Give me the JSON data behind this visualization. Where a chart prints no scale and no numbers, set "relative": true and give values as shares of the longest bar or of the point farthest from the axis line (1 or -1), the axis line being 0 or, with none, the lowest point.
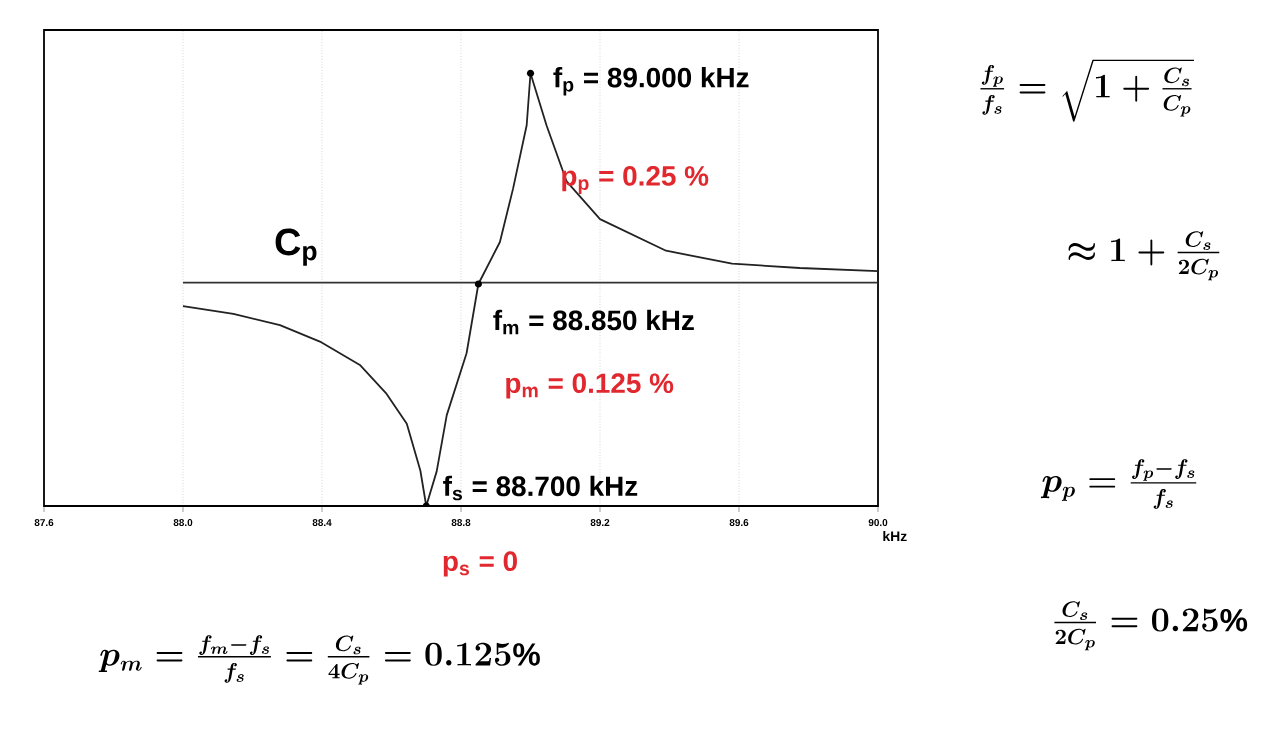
{
  "chart_data": {
    "type": "line",
    "relative": true,
    "xlabel": "kHz",
    "xlim": [
      87.6,
      90.0
    ],
    "xticks": [
      87.6,
      {
        "value": 88,
        "label": "88.0"
      },
      88.4,
      88.8,
      89.2,
      89.6,
      {
        "value": 90,
        "label": "90.0"
      }
    ],
    "grid": "x",
    "series": [
      {
        "color": "#222222",
        "x": [
          88.0,
          88.145,
          88.279,
          88.394,
          88.509,
          88.584,
          88.644,
          88.683,
          88.7,
          88.73,
          88.759,
          88.816,
          88.85,
          88.912,
          88.95,
          88.989,
          89.0,
          89.046,
          89.104,
          89.2,
          89.39,
          89.58,
          89.775,
          90.0
        ],
        "values": [
          0.462,
          0.444,
          0.418,
          0.38,
          0.326,
          0.261,
          0.19,
          0.082,
          0,
          0.08,
          0.21,
          0.353,
          0.513,
          0.61,
          0.734,
          0.88,
          1,
          0.88,
          0.75,
          0.663,
          0.59,
          0.56,
          0.55,
          0.543
        ]
      },
      {
        "name": "C$_{p}$",
        "color": "#333333",
        "x": [
          88.0,
          90.0
        ],
        "values": [
          0.516,
          0.516
        ]
      }
    ],
    "annotations": [
      {
        "text": "f$_{p}$ = 89.000 kHz",
        "x": 89.0,
        "y": 1
      },
      "p$_{p}$ = 0.25 %",
      {
        "text": "f$_{m}$ = 88.850 kHz",
        "x": 88.85,
        "y": 0.513
      },
      "p$_{m}$ = 0.125 %",
      {
        "text": "f$_{s}$ = 88.700 kHz",
        "x": 88.7,
        "y": 0
      },
      "p$_{s}$ = 0",
      "p_m = \\frac{f_m - f_s}{f_s} = \\frac{C_s}{4C_p} = 0.125\\%",
      "\\frac{f_p}{f_s} = \\sqrt{1+\\frac{C_s}{C_p}}",
      "\\approx 1 + \\frac{C_s}{2C_p}",
      "p_p = \\frac{f_p - f_s}{f_s}",
      "\\frac{C_s}{2C_p} = 0.25\\%"
    ]
  }
}
